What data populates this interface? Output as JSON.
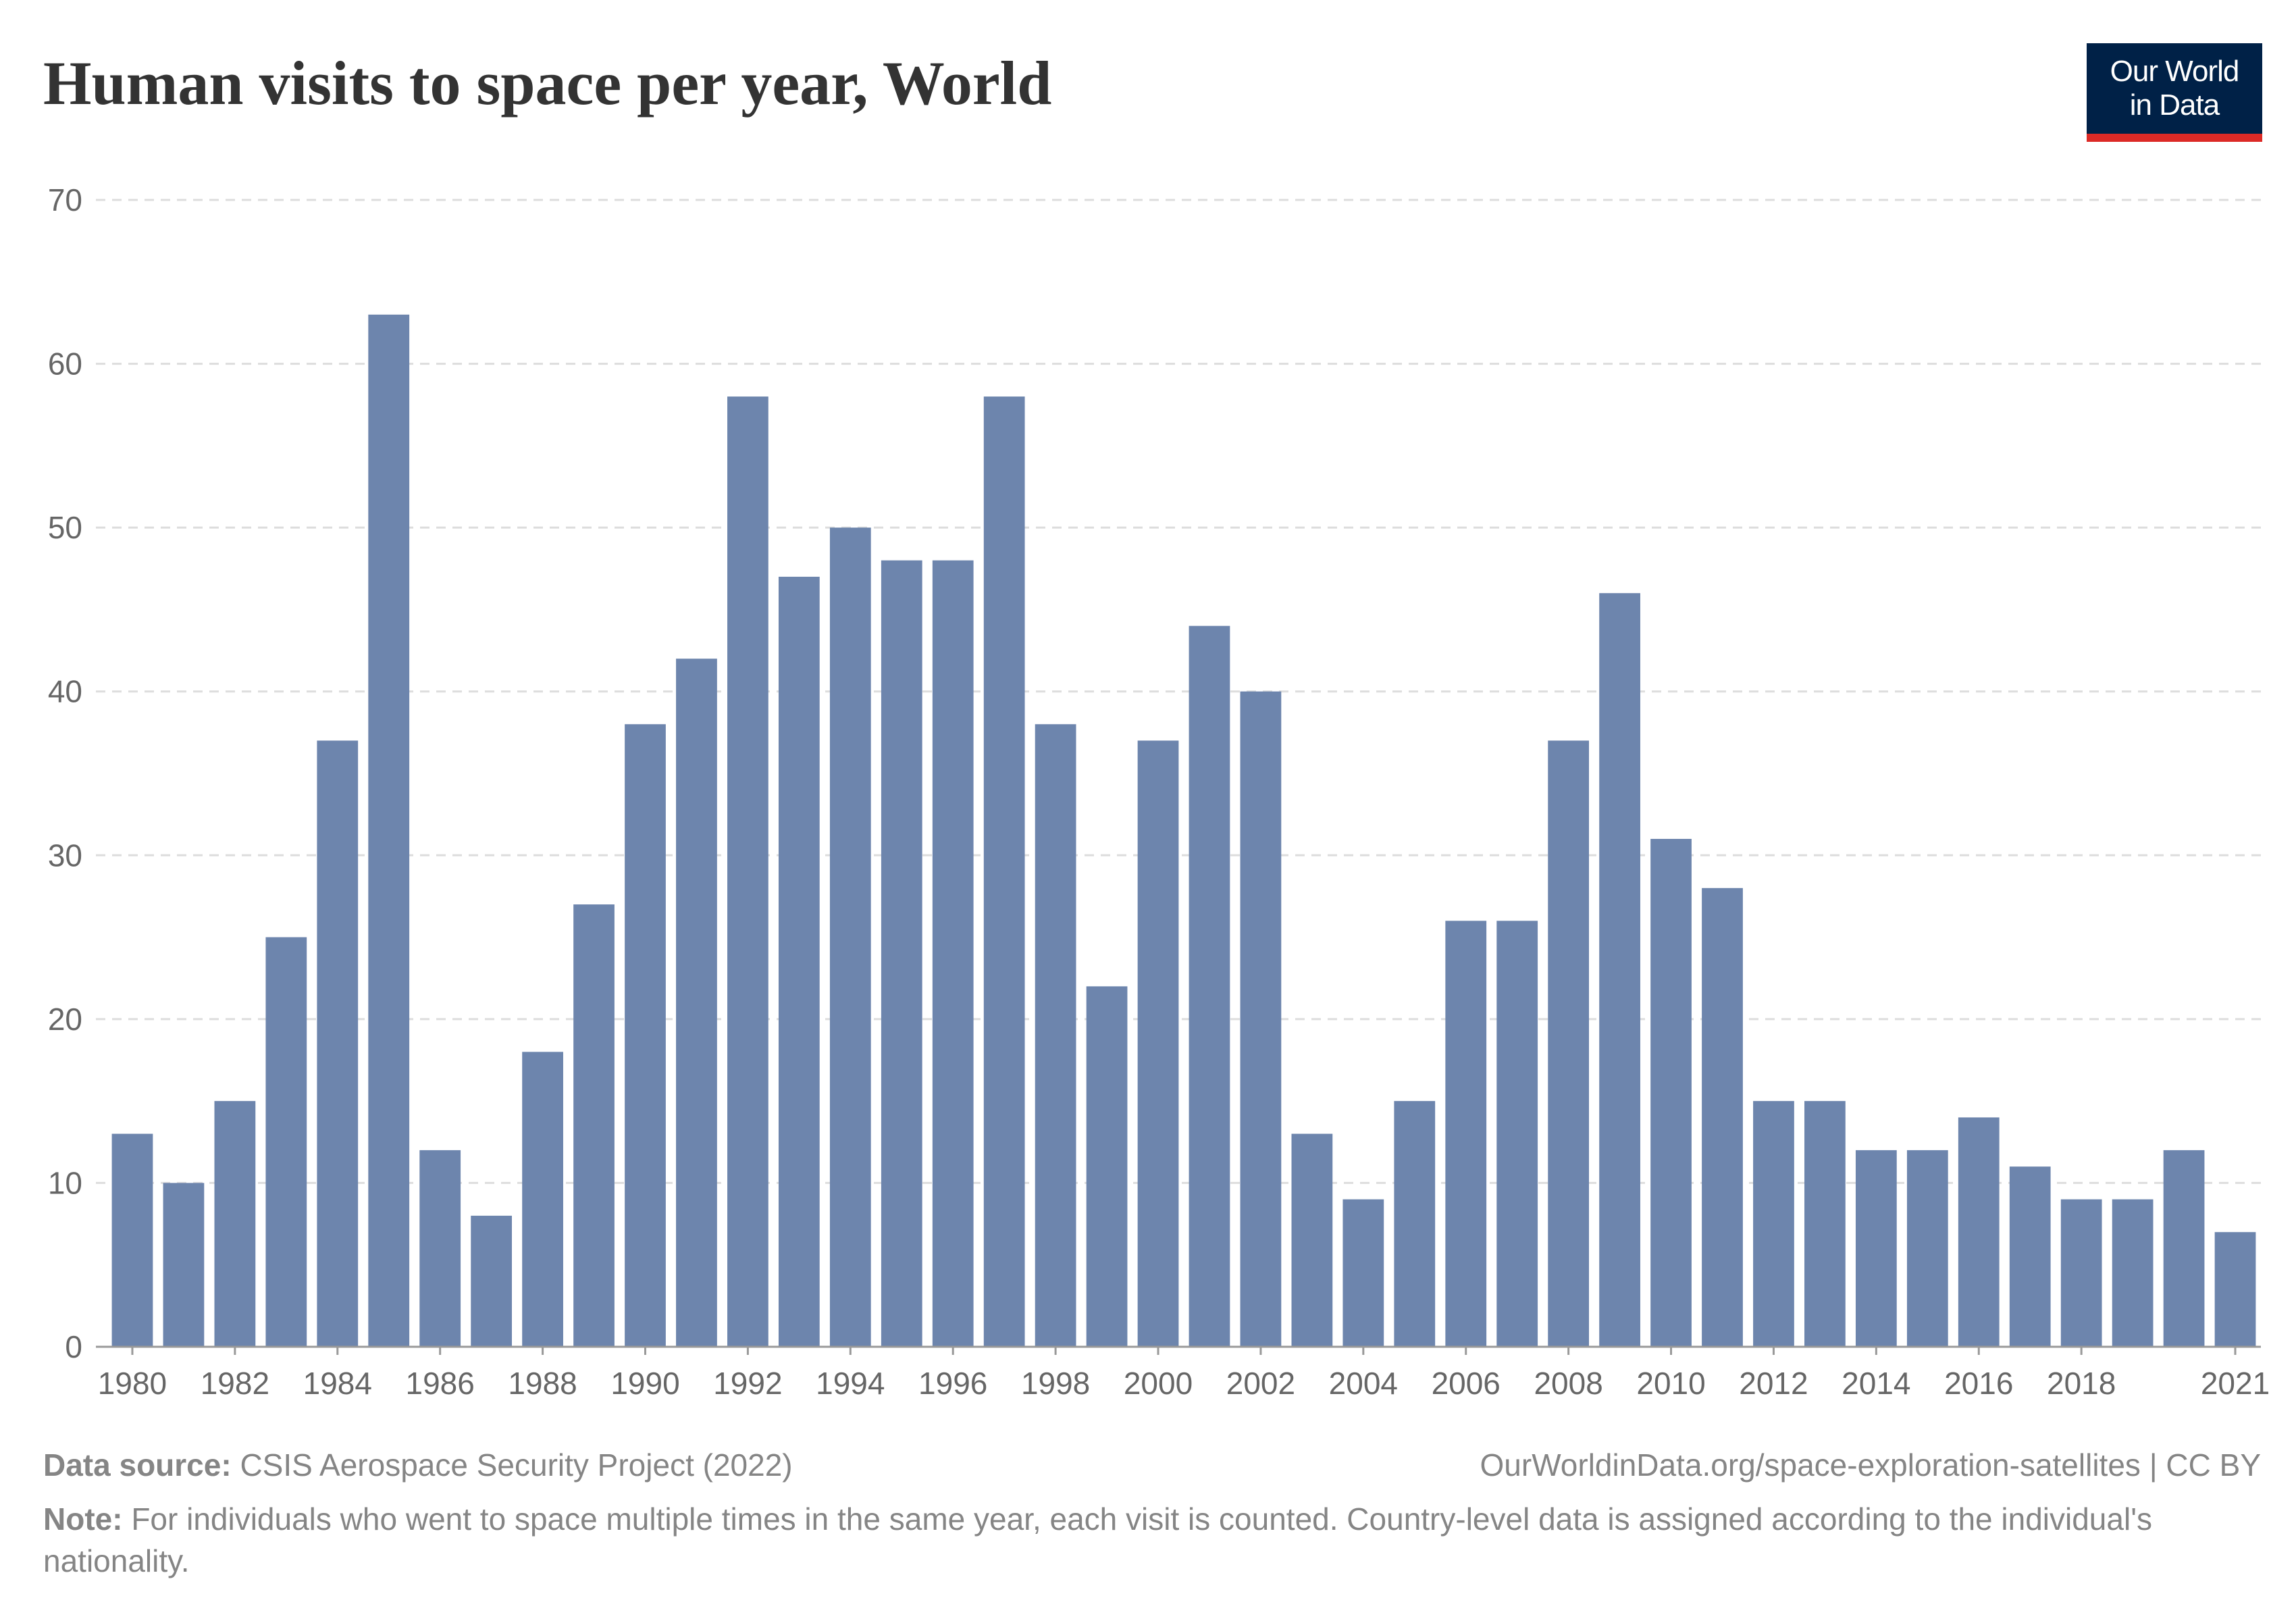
{
  "title": "Human visits to space per year, World",
  "logo": {
    "line1": "Our World",
    "line2": "in Data"
  },
  "footer": {
    "source_label": "Data source:",
    "source_text": "CSIS Aerospace Security Project (2022)",
    "url": "OurWorldinData.org/space-exploration-satellites | CC BY",
    "note_label": "Note:",
    "note_text": "For individuals who went to space multiple times in the same year, each visit is counted. Country-level data is assigned according to the individual's nationality."
  },
  "colors": {
    "bar": "#6d85ad",
    "grid": "#dddddd",
    "axis": "#999999",
    "text": "#666666"
  },
  "chart_data": {
    "type": "bar",
    "title": "Human visits to space per year, World",
    "categories": [
      1980,
      1981,
      1982,
      1983,
      1984,
      1985,
      1986,
      1987,
      1988,
      1989,
      1990,
      1991,
      1992,
      1993,
      1994,
      1995,
      1996,
      1997,
      1998,
      1999,
      2000,
      2001,
      2002,
      2003,
      2004,
      2005,
      2006,
      2007,
      2008,
      2009,
      2010,
      2011,
      2012,
      2013,
      2014,
      2015,
      2016,
      2017,
      2018,
      2019,
      2020,
      2021
    ],
    "values": [
      13,
      10,
      15,
      25,
      37,
      63,
      12,
      8,
      18,
      27,
      38,
      42,
      58,
      47,
      50,
      48,
      48,
      58,
      38,
      22,
      37,
      44,
      40,
      13,
      9,
      15,
      26,
      26,
      37,
      46,
      31,
      28,
      15,
      15,
      12,
      12,
      14,
      11,
      9,
      9,
      12,
      7
    ],
    "x_tick_labels": [
      "1980",
      "1982",
      "1984",
      "1986",
      "1988",
      "1990",
      "1992",
      "1994",
      "1996",
      "1998",
      "2000",
      "2002",
      "2004",
      "2006",
      "2008",
      "2010",
      "2012",
      "2014",
      "2016",
      "2018",
      "2021"
    ],
    "y_ticks": [
      0,
      10,
      20,
      30,
      40,
      50,
      60,
      70
    ],
    "ylim": [
      0,
      70
    ],
    "grid": true,
    "legend": "none"
  }
}
